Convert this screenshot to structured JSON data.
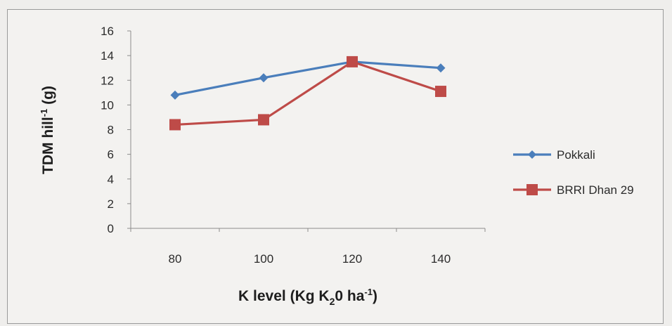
{
  "chart_data": {
    "type": "line",
    "title": "",
    "categories": [
      "80",
      "100",
      "120",
      "140"
    ],
    "x": [
      80,
      100,
      120,
      140
    ],
    "ylim": [
      0,
      16
    ],
    "yticks": [
      0,
      2,
      4,
      6,
      8,
      10,
      12,
      14,
      16
    ],
    "ylabel": {
      "main": "TDM hill",
      "sup": "-1",
      "tail": " (g)"
    },
    "xlabel": {
      "pre": "K level (Kg K",
      "sub": "2",
      "mid": "0 ha",
      "sup": "-1",
      "post": ")"
    },
    "grid": false,
    "legend_position": "right",
    "series": [
      {
        "name": "Pokkali",
        "values": [
          10.8,
          12.2,
          13.5,
          13.0
        ],
        "color": "#4a7ebb",
        "marker": "diamond"
      },
      {
        "name": "BRRI Dhan 29",
        "values": [
          8.4,
          8.8,
          13.5,
          11.1
        ],
        "color": "#be4b48",
        "marker": "square"
      }
    ]
  }
}
